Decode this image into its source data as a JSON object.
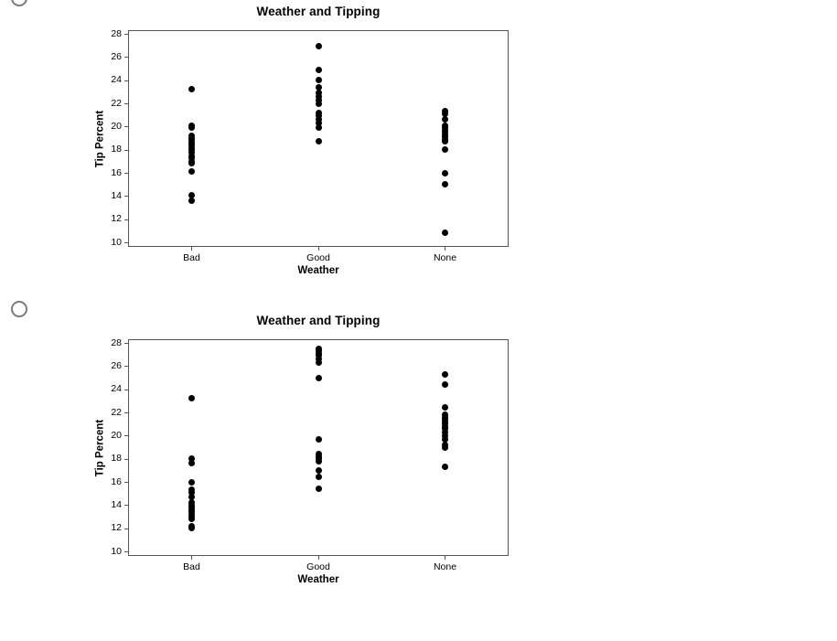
{
  "page": {
    "background": "#ffffff"
  },
  "options": [
    {
      "id": "A",
      "selected": false
    },
    {
      "id": "B",
      "selected": false
    }
  ],
  "colors": {
    "dot": "#000000",
    "frame": "#565656",
    "text": "#000000",
    "radio_border": "#7b7b7b"
  },
  "chart_data": [
    {
      "type": "scatter",
      "variant": "strip-plot",
      "title": "Weather and Tipping",
      "xlabel": "Weather",
      "ylabel": "Tip Percent",
      "ylim": [
        10,
        28
      ],
      "yticks": [
        28,
        26,
        24,
        22,
        20,
        18,
        16,
        14,
        12,
        10
      ],
      "categories": [
        "Bad",
        "Good",
        "None"
      ],
      "grid": false,
      "legend": "none",
      "series": [
        {
          "name": "Bad",
          "values": [
            23.2,
            20.1,
            19.9,
            19.2,
            19.0,
            18.8,
            18.6,
            18.4,
            18.2,
            18.0,
            17.8,
            17.5,
            17.3,
            17.0,
            16.8,
            16.1,
            14.1,
            13.6
          ]
        },
        {
          "name": "Good",
          "values": [
            26.9,
            24.9,
            24.0,
            23.4,
            22.9,
            22.6,
            22.3,
            22.0,
            21.2,
            20.9,
            20.6,
            20.3,
            19.9,
            18.7
          ]
        },
        {
          "name": "None",
          "values": [
            21.3,
            21.1,
            20.6,
            20.1,
            19.9,
            19.7,
            19.5,
            19.3,
            19.1,
            18.9,
            18.7,
            18.0,
            16.0,
            15.0,
            10.8
          ]
        }
      ]
    },
    {
      "type": "scatter",
      "variant": "strip-plot",
      "title": "Weather and Tipping",
      "xlabel": "Weather",
      "ylabel": "Tip Percent",
      "ylim": [
        10,
        28
      ],
      "yticks": [
        28,
        26,
        24,
        22,
        20,
        18,
        16,
        14,
        12,
        10
      ],
      "categories": [
        "Bad",
        "Good",
        "None"
      ],
      "grid": false,
      "legend": "none",
      "series": [
        {
          "name": "Bad",
          "values": [
            23.2,
            18.0,
            17.6,
            16.0,
            15.3,
            15.1,
            14.7,
            14.2,
            14.0,
            13.8,
            13.6,
            13.4,
            13.2,
            13.0,
            12.8,
            12.2,
            12.0
          ]
        },
        {
          "name": "Good",
          "values": [
            27.5,
            27.3,
            27.1,
            26.9,
            26.6,
            26.3,
            25.0,
            19.7,
            18.4,
            18.2,
            18.0,
            17.8,
            17.0,
            16.4,
            15.4
          ]
        },
        {
          "name": "None",
          "values": [
            25.3,
            24.4,
            22.4,
            21.8,
            21.6,
            21.4,
            21.2,
            21.0,
            20.8,
            20.6,
            20.3,
            20.0,
            19.7,
            19.2,
            19.0,
            17.3
          ]
        }
      ]
    }
  ]
}
